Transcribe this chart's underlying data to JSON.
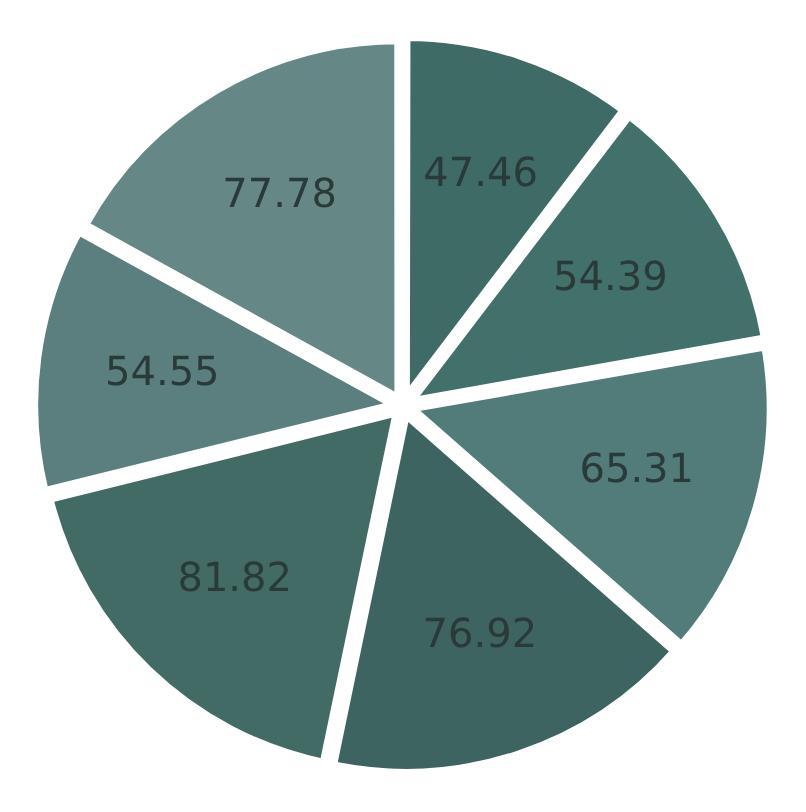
{
  "chart_data": {
    "type": "pie",
    "categories": [
      null,
      null,
      null,
      null,
      null,
      null,
      null
    ],
    "values": [
      47.46,
      54.39,
      65.31,
      76.92,
      81.82,
      54.55,
      77.78
    ],
    "colors": [
      "#3f6b66",
      "#42706a",
      "#517c7a",
      "#3d6460",
      "#436b66",
      "#5a7f7e",
      "#658887"
    ],
    "data_labels": true,
    "legend": false
  }
}
